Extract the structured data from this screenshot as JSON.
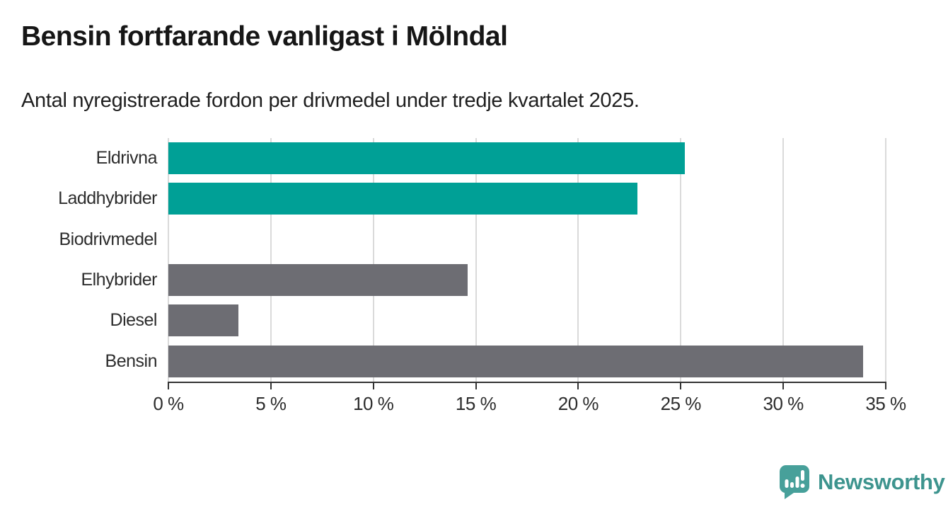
{
  "header": {
    "title": "Bensin fortfarande vanligast i Mölndal",
    "subtitle": "Antal nyregistrerade fordon per drivmedel under tredje kvartalet 2025."
  },
  "chart_data": {
    "type": "bar",
    "orientation": "horizontal",
    "title": "Bensin fortfarande vanligast i Mölndal",
    "subtitle": "Antal nyregistrerade fordon per drivmedel under tredje kvartalet 2025.",
    "categories": [
      "Eldrivna",
      "Laddhybrider",
      "Biodrivmedel",
      "Elhybrider",
      "Diesel",
      "Bensin"
    ],
    "values": [
      25.2,
      22.9,
      0,
      14.6,
      3.4,
      33.9
    ],
    "unit": "%",
    "bar_colors": [
      "#00a096",
      "#00a096",
      "#00a096",
      "#6d6d73",
      "#6d6d73",
      "#6d6d73"
    ],
    "xlabel": "",
    "ylabel": "",
    "xlim": [
      0,
      35
    ],
    "x_ticks": [
      0,
      5,
      10,
      15,
      20,
      25,
      30,
      35
    ],
    "x_tick_labels": [
      "0 %",
      "5 %",
      "10 %",
      "15 %",
      "20 %",
      "25 %",
      "30 %",
      "35 %"
    ],
    "grid": true,
    "legend": false
  },
  "colors": {
    "teal_bar": "#00a096",
    "gray_bar": "#6d6d73",
    "gridline": "#dadada",
    "axis": "#333333",
    "text": "#1f1f1f",
    "brand_teal": "#3d948e",
    "logo_icon_teal": "#47a09a"
  },
  "footer": {
    "brand": "Newsworthy",
    "logo_icon": "newsworthy-speech-bubble-bar-chart-icon"
  }
}
